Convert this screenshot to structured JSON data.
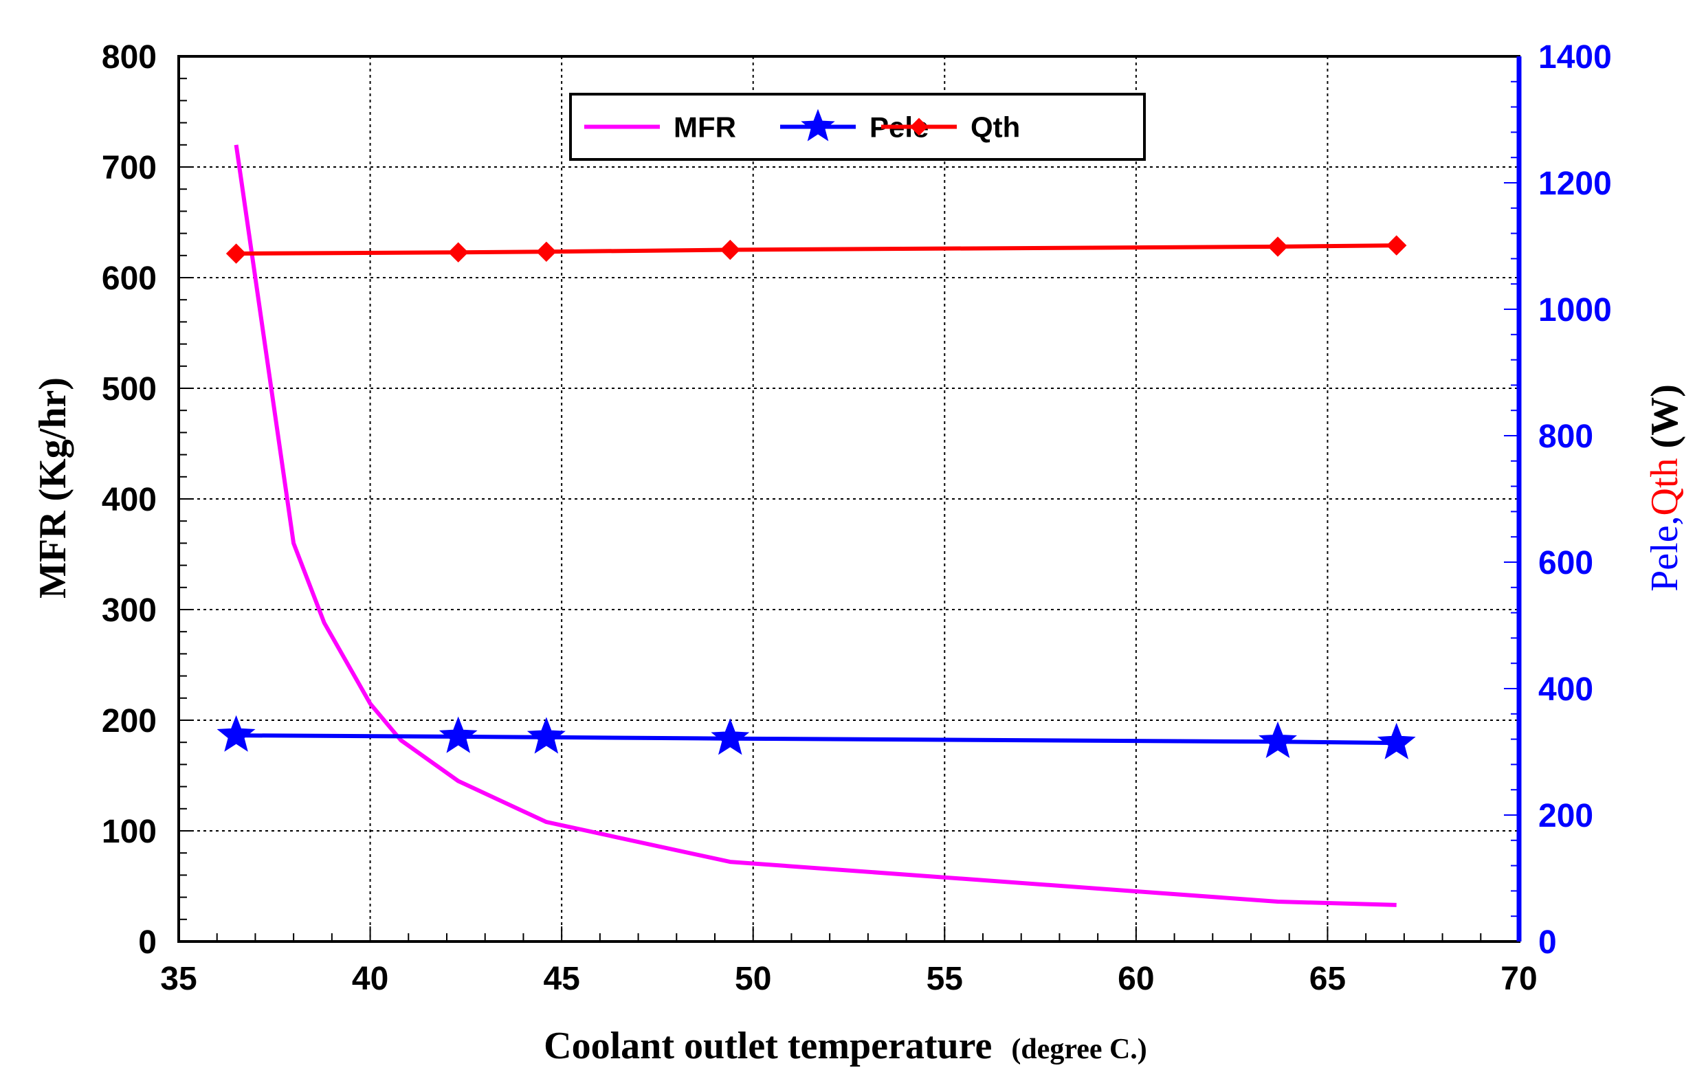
{
  "chart_data": {
    "type": "line",
    "xlabel": "Coolant outlet temperature",
    "xlabel_unit": "(degree C.)",
    "ylabel": "MFR (Kg/hr)",
    "y2label_parts": [
      "Pele",
      ",",
      "Qth",
      " (W)"
    ],
    "xlim": [
      35,
      70
    ],
    "ylim": [
      0,
      800
    ],
    "y2lim": [
      0,
      1400
    ],
    "x_ticks": [
      "35",
      "40",
      "45",
      "50",
      "55",
      "60",
      "65",
      "70"
    ],
    "y_ticks": [
      "0",
      "100",
      "200",
      "300",
      "400",
      "500",
      "600",
      "700",
      "800"
    ],
    "y2_ticks": [
      "0",
      "200",
      "400",
      "600",
      "800",
      "1000",
      "1200",
      "1400"
    ],
    "grid": true,
    "legend_position": "top-center",
    "series": [
      {
        "name": "MFR",
        "axis": "left",
        "color": "#ff00ff",
        "marker": "none",
        "x": [
          36.5,
          38.0,
          38.8,
          40.0,
          40.8,
          42.3,
          44.6,
          49.4,
          63.7,
          66.8
        ],
        "y": [
          720,
          360,
          288,
          215,
          182,
          145,
          108,
          72,
          36,
          33
        ]
      },
      {
        "name": "Pele",
        "axis": "right",
        "color": "#0000ff",
        "marker": "star",
        "x": [
          36.5,
          42.3,
          44.6,
          49.4,
          63.7,
          66.8
        ],
        "y": [
          326,
          324,
          323,
          321,
          316,
          314
        ]
      },
      {
        "name": "Qth",
        "axis": "right",
        "color": "#ff0000",
        "marker": "diamond",
        "x": [
          36.5,
          42.3,
          44.6,
          49.4,
          63.7,
          66.8
        ],
        "y": [
          1088,
          1090,
          1091,
          1094,
          1099,
          1101
        ]
      }
    ],
    "colors": {
      "frame": "#000000",
      "right_axis": "#0000ff",
      "right_title_pele": "#0000ff",
      "right_title_qth": "#ff0000",
      "right_title_unit": "#000000"
    }
  }
}
